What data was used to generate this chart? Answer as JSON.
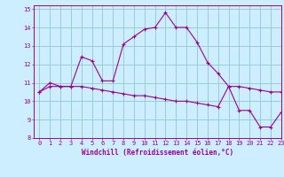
{
  "xlabel": "Windchill (Refroidissement éolien,°C)",
  "background_color": "#cceeff",
  "grid_color": "#99cccc",
  "line_color": "#990099",
  "xlim": [
    -0.5,
    23
  ],
  "ylim": [
    8,
    15.2
  ],
  "yticks": [
    8,
    9,
    10,
    11,
    12,
    13,
    14,
    15
  ],
  "xticks": [
    0,
    1,
    2,
    3,
    4,
    5,
    6,
    7,
    8,
    9,
    10,
    11,
    12,
    13,
    14,
    15,
    16,
    17,
    18,
    19,
    20,
    21,
    22,
    23
  ],
  "hours": [
    0,
    1,
    2,
    3,
    4,
    5,
    6,
    7,
    8,
    9,
    10,
    11,
    12,
    13,
    14,
    15,
    16,
    17,
    18,
    19,
    20,
    21,
    22,
    23
  ],
  "temp_line": [
    10.5,
    11.0,
    10.8,
    10.8,
    12.4,
    12.2,
    11.1,
    11.1,
    13.1,
    13.5,
    13.9,
    14.0,
    14.8,
    14.0,
    14.0,
    13.2,
    12.1,
    11.5,
    10.8,
    9.5,
    9.5,
    8.6,
    8.6,
    9.4
  ],
  "windchill_line": [
    10.5,
    10.8,
    10.8,
    10.8,
    10.8,
    10.7,
    10.6,
    10.5,
    10.4,
    10.3,
    10.3,
    10.2,
    10.1,
    10.0,
    10.0,
    9.9,
    9.8,
    9.7,
    10.8,
    10.8,
    10.7,
    10.6,
    10.5,
    10.5
  ]
}
